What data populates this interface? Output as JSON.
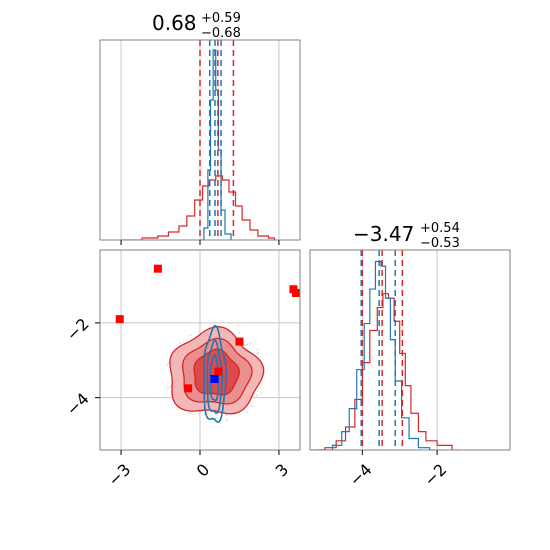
{
  "colors": {
    "red": "#d62728",
    "blue": "#1f77b4",
    "red_fill_light": "#f2b8b8",
    "red_fill_mid": "#e98f90",
    "red_fill_dark": "#dd4a4c",
    "grid": "#c8c8c8",
    "marker_red": "#ff0000",
    "marker_blue": "#0000ff"
  },
  "chart_data": [
    {
      "panel": "top-left",
      "type": "histogram",
      "title": {
        "value": "0.68",
        "plus": "+0.59",
        "minus": "−0.68"
      },
      "xlim": [
        -3.8,
        3.8
      ],
      "xticks": [
        -3,
        0,
        3
      ],
      "grid": true,
      "quantile_lines_red": [
        0.0,
        0.68,
        1.27
      ],
      "quantile_lines_blue": [
        0.37,
        0.57,
        0.8
      ],
      "series": [
        {
          "color": "red",
          "bins": [
            [
              -3.0,
              0.0
            ],
            [
              -2.2,
              0.01
            ],
            [
              -1.6,
              0.02
            ],
            [
              -1.2,
              0.04
            ],
            [
              -0.8,
              0.07
            ],
            [
              -0.5,
              0.12
            ],
            [
              -0.2,
              0.2
            ],
            [
              0.1,
              0.27
            ],
            [
              0.35,
              0.3
            ],
            [
              0.6,
              0.32
            ],
            [
              0.85,
              0.3
            ],
            [
              1.1,
              0.24
            ],
            [
              1.35,
              0.17
            ],
            [
              1.6,
              0.1
            ],
            [
              1.9,
              0.05
            ],
            [
              2.2,
              0.02
            ],
            [
              2.6,
              0.01
            ]
          ]
        },
        {
          "color": "blue",
          "bins": [
            [
              0.0,
              0.0
            ],
            [
              0.15,
              0.06
            ],
            [
              0.3,
              0.35
            ],
            [
              0.4,
              0.7
            ],
            [
              0.5,
              0.95
            ],
            [
              0.6,
              0.75
            ],
            [
              0.7,
              0.45
            ],
            [
              0.8,
              0.15
            ],
            [
              0.95,
              0.03
            ]
          ]
        }
      ]
    },
    {
      "panel": "bottom-left",
      "type": "contour",
      "xlim": [
        -3.8,
        3.8
      ],
      "ylim": [
        -5.4,
        -0.05
      ],
      "xticks": [
        -3,
        0,
        3
      ],
      "yticks": [
        -2,
        -4
      ],
      "grid": true,
      "red_markers": [
        {
          "x": -1.6,
          "y": -0.55
        },
        {
          "x": 3.55,
          "y": -1.1
        },
        {
          "x": 3.65,
          "y": -1.2
        },
        {
          "x": -3.05,
          "y": -1.9
        },
        {
          "x": 1.5,
          "y": -2.5
        },
        {
          "x": 0.7,
          "y": -3.3
        },
        {
          "x": -0.45,
          "y": -3.75
        }
      ],
      "blue_markers": [
        {
          "x": 0.55,
          "y": -3.5
        }
      ]
    },
    {
      "panel": "bottom-right",
      "type": "histogram",
      "title": {
        "value": "−3.47",
        "plus": "+0.54",
        "minus": "−0.53"
      },
      "xlim": [
        -5.4,
        -0.05
      ],
      "xticks": [
        -4,
        -2
      ],
      "grid": true,
      "quantile_lines_red": [
        -4.0,
        -3.47,
        -2.93
      ],
      "quantile_lines_blue": [
        -4.03,
        -3.55,
        -3.12
      ],
      "series": [
        {
          "color": "red",
          "bins": [
            [
              -5.3,
              0.0
            ],
            [
              -5.0,
              0.01
            ],
            [
              -4.7,
              0.04
            ],
            [
              -4.45,
              0.1
            ],
            [
              -4.2,
              0.22
            ],
            [
              -4.0,
              0.38
            ],
            [
              -3.8,
              0.52
            ],
            [
              -3.6,
              0.62
            ],
            [
              -3.45,
              0.68
            ],
            [
              -3.3,
              0.66
            ],
            [
              -3.15,
              0.56
            ],
            [
              -3.0,
              0.42
            ],
            [
              -2.85,
              0.28
            ],
            [
              -2.7,
              0.16
            ],
            [
              -2.5,
              0.08
            ],
            [
              -2.3,
              0.04
            ],
            [
              -2.0,
              0.02
            ],
            [
              -1.6,
              0.0
            ]
          ]
        },
        {
          "color": "blue",
          "bins": [
            [
              -5.1,
              0.0
            ],
            [
              -4.8,
              0.02
            ],
            [
              -4.55,
              0.08
            ],
            [
              -4.35,
              0.18
            ],
            [
              -4.15,
              0.35
            ],
            [
              -3.95,
              0.55
            ],
            [
              -3.8,
              0.7
            ],
            [
              -3.65,
              0.82
            ],
            [
              -3.5,
              0.8
            ],
            [
              -3.38,
              0.66
            ],
            [
              -3.25,
              0.48
            ],
            [
              -3.12,
              0.3
            ],
            [
              -2.95,
              0.14
            ],
            [
              -2.75,
              0.05
            ],
            [
              -2.5,
              0.01
            ],
            [
              -2.2,
              0.0
            ]
          ]
        }
      ]
    }
  ]
}
